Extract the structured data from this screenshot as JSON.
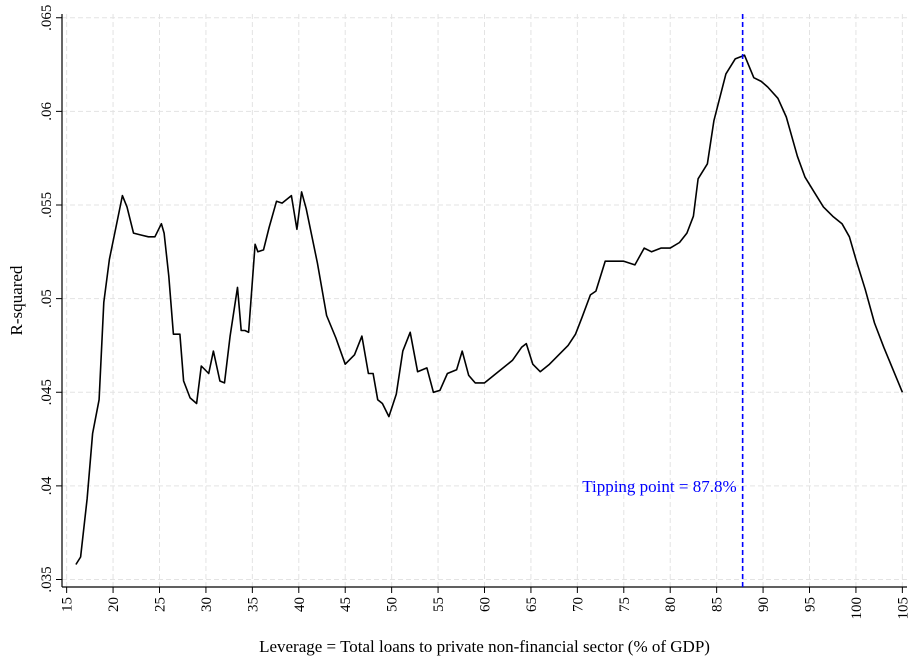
{
  "chart_data": {
    "type": "line",
    "xlabel": "Leverage = Total loans to private non-financial sector (% of GDP)",
    "ylabel": "R-squared",
    "xlim": [
      14.5,
      105.5
    ],
    "ylim": [
      0.0346,
      0.0652
    ],
    "x_ticks": [
      15,
      20,
      25,
      30,
      35,
      40,
      45,
      50,
      55,
      60,
      65,
      70,
      75,
      80,
      85,
      90,
      95,
      100,
      105
    ],
    "x_tick_labels": [
      "15",
      "20",
      "25",
      "30",
      "35",
      "40",
      "45",
      "50",
      "55",
      "60",
      "65",
      "70",
      "75",
      "80",
      "85",
      "90",
      "95",
      "100",
      "105"
    ],
    "y_ticks": [
      0.035,
      0.04,
      0.045,
      0.05,
      0.055,
      0.06,
      0.065
    ],
    "y_tick_labels": [
      ".035",
      ".04",
      ".045",
      ".05",
      ".055",
      ".06",
      ".065"
    ],
    "grid": true,
    "line_color": "#000000",
    "series": [
      {
        "x": [
          16.0,
          16.5,
          17.2,
          17.8,
          18.5,
          19.0,
          19.6,
          20.3,
          21.0,
          21.5,
          22.2,
          23.0,
          23.8,
          24.5,
          25.2,
          25.5,
          26.0,
          26.5,
          27.2,
          27.6,
          28.3,
          29.0,
          29.5,
          30.3,
          30.8,
          31.5,
          32.0,
          32.6,
          33.4,
          33.8,
          34.2,
          34.6,
          35.3,
          35.6,
          36.2,
          36.8,
          37.6,
          38.2,
          39.2,
          39.8,
          40.3,
          40.8,
          42.0,
          43.0,
          44.0,
          45.0,
          46.0,
          46.8,
          47.5,
          48.0,
          48.5,
          49.0,
          49.7,
          50.5,
          51.2,
          52.0,
          52.8,
          53.8,
          54.5,
          55.2,
          56.0,
          57.0,
          57.6,
          58.3,
          59.0,
          60.0,
          61.0,
          62.0,
          63.0,
          64.0,
          64.5,
          65.2,
          66.0,
          67.0,
          68.0,
          69.0,
          69.8,
          70.5,
          71.4,
          72.0,
          73.0,
          74.0,
          75.0,
          76.2,
          77.2,
          78.0,
          79.0,
          80.0,
          81.0,
          81.8,
          82.5,
          83.0,
          84.0,
          84.7,
          86.0,
          87.0,
          88.0,
          89.0,
          89.8,
          90.5,
          91.6,
          92.5,
          93.7,
          94.5,
          95.5,
          96.5,
          97.5,
          98.5,
          99.3,
          100.0,
          101.0,
          102.0,
          103.0,
          104.0,
          105.0
        ],
        "y": [
          0.0358,
          0.0362,
          0.0393,
          0.0428,
          0.0446,
          0.0498,
          0.0521,
          0.0538,
          0.0555,
          0.0549,
          0.0535,
          0.0534,
          0.0533,
          0.0533,
          0.054,
          0.0535,
          0.0512,
          0.0481,
          0.0481,
          0.0456,
          0.0447,
          0.0444,
          0.0464,
          0.046,
          0.0472,
          0.0456,
          0.0455,
          0.048,
          0.0506,
          0.0483,
          0.0483,
          0.0482,
          0.0529,
          0.0525,
          0.0526,
          0.0538,
          0.0552,
          0.0551,
          0.0555,
          0.0537,
          0.0557,
          0.0548,
          0.0519,
          0.0491,
          0.0479,
          0.0465,
          0.047,
          0.048,
          0.046,
          0.046,
          0.0446,
          0.0444,
          0.0437,
          0.0449,
          0.0472,
          0.0482,
          0.0461,
          0.0463,
          0.045,
          0.0451,
          0.046,
          0.0462,
          0.0472,
          0.0459,
          0.0455,
          0.0455,
          0.0459,
          0.0463,
          0.0467,
          0.0474,
          0.0476,
          0.0465,
          0.0461,
          0.0465,
          0.047,
          0.0475,
          0.0481,
          0.049,
          0.0502,
          0.0504,
          0.052,
          0.052,
          0.052,
          0.0518,
          0.0527,
          0.0525,
          0.0527,
          0.0527,
          0.053,
          0.0535,
          0.0544,
          0.0564,
          0.0572,
          0.0595,
          0.062,
          0.0628,
          0.063,
          0.0618,
          0.0616,
          0.0613,
          0.0607,
          0.0597,
          0.0576,
          0.0565,
          0.0557,
          0.0549,
          0.0544,
          0.054,
          0.0533,
          0.0521,
          0.0505,
          0.0487,
          0.0474,
          0.0462,
          0.045
        ]
      }
    ],
    "reference_line": {
      "x": 87.8,
      "color": "#0000ff",
      "style": "dashed"
    },
    "annotations": [
      {
        "text": "Tipping point = 87.8%",
        "x": 87.8,
        "y": 0.04,
        "color": "#0000ff",
        "anchor": "left-of-line"
      }
    ]
  }
}
